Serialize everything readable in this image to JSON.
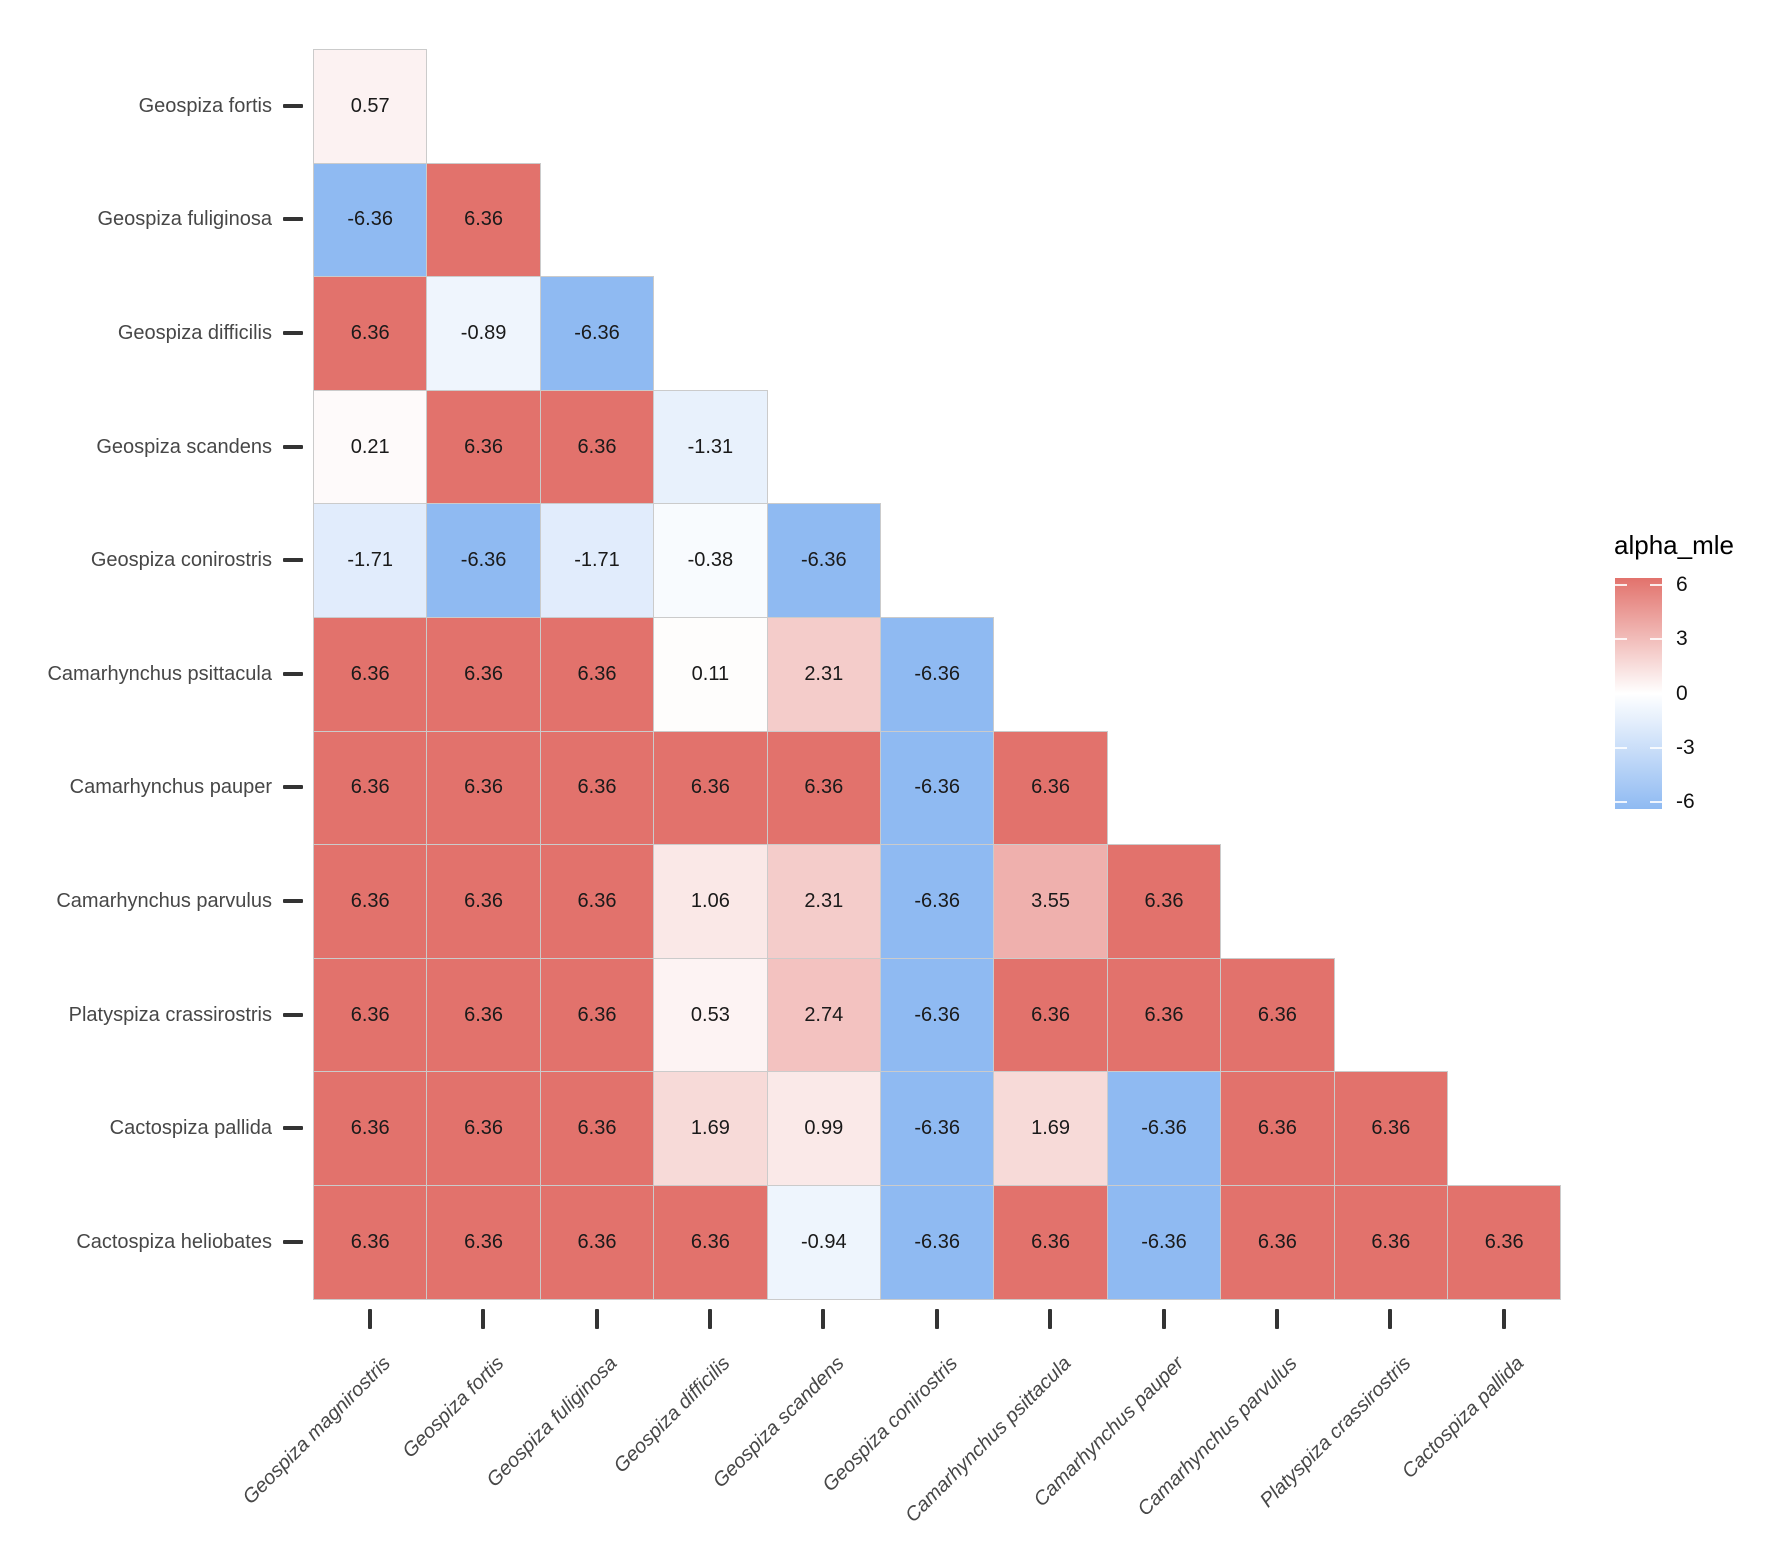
{
  "chart_data": {
    "type": "heatmap",
    "title": "",
    "legend_title": "alpha_mle",
    "x_categories": [
      "Geospiza magnirostris",
      "Geospiza fortis",
      "Geospiza fuliginosa",
      "Geospiza difficilis",
      "Geospiza scandens",
      "Geospiza conirostris",
      "Camarhynchus psittacula",
      "Camarhynchus pauper",
      "Camarhynchus parvulus",
      "Platyspiza crassirostris",
      "Cactospiza pallida"
    ],
    "y_categories": [
      "Geospiza fortis",
      "Geospiza fuliginosa",
      "Geospiza difficilis",
      "Geospiza scandens",
      "Geospiza conirostris",
      "Camarhynchus psittacula",
      "Camarhynchus pauper",
      "Camarhynchus parvulus",
      "Platyspiza crassirostris",
      "Cactospiza pallida",
      "Cactospiza heliobates"
    ],
    "values": [
      [
        0.57
      ],
      [
        -6.36,
        6.36
      ],
      [
        6.36,
        -0.89,
        -6.36
      ],
      [
        0.21,
        6.36,
        6.36,
        -1.31
      ],
      [
        -1.71,
        -6.36,
        -1.71,
        -0.38,
        -6.36
      ],
      [
        6.36,
        6.36,
        6.36,
        0.11,
        2.31,
        -6.36
      ],
      [
        6.36,
        6.36,
        6.36,
        6.36,
        6.36,
        -6.36,
        6.36
      ],
      [
        6.36,
        6.36,
        6.36,
        1.06,
        2.31,
        -6.36,
        3.55,
        6.36
      ],
      [
        6.36,
        6.36,
        6.36,
        0.53,
        2.74,
        -6.36,
        6.36,
        6.36,
        6.36
      ],
      [
        6.36,
        6.36,
        6.36,
        1.69,
        0.99,
        -6.36,
        1.69,
        -6.36,
        6.36,
        6.36
      ],
      [
        6.36,
        6.36,
        6.36,
        6.36,
        -0.94,
        -6.36,
        6.36,
        -6.36,
        6.36,
        6.36,
        6.36
      ]
    ],
    "value_format_decimals": 2,
    "triangle": "lower",
    "grid": "off",
    "legend_position": "right",
    "colorscale": {
      "domain": [
        -6.36,
        6.36
      ],
      "negative_color": "#8FBAF2",
      "mid_color": "#FFFFFF",
      "positive_color": "#E2726C",
      "legend_tick_labels": [
        "6",
        "3",
        "0",
        "-3",
        "-6"
      ],
      "legend_tick_values": [
        6,
        3,
        0,
        -3,
        -6
      ]
    },
    "grid_line_color": "#cbcbcb",
    "axis_text_color": "#474747",
    "cell_text_color": "#1a1a1a",
    "tick_mark_color": "#333333"
  }
}
